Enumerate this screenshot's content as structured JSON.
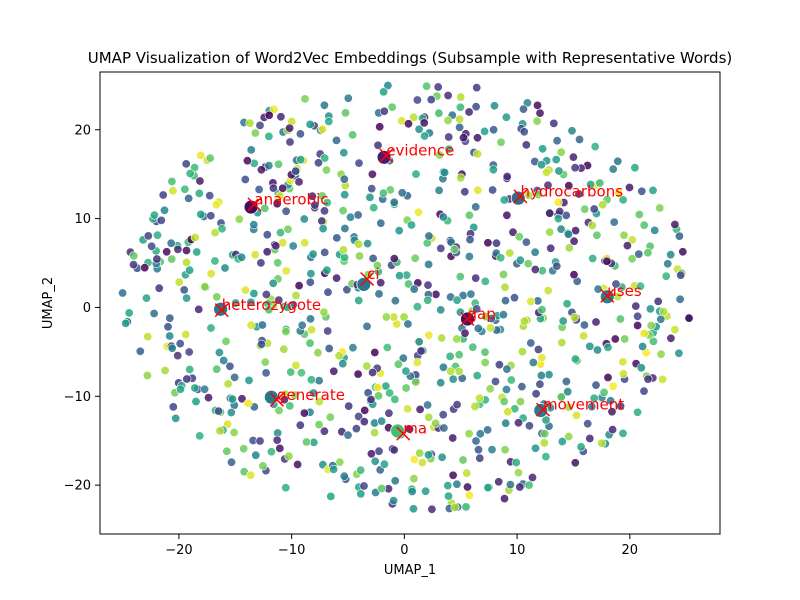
{
  "chart_data": {
    "type": "scatter",
    "title": "UMAP Visualization of Word2Vec Embeddings (Subsample with Representative Words)",
    "xlabel": "UMAP_1",
    "ylabel": "UMAP_2",
    "xlim": [
      -27,
      28
    ],
    "ylim": [
      -25.5,
      26.5
    ],
    "xticks": [
      -20,
      -10,
      0,
      10,
      20
    ],
    "yticks": [
      -20,
      -10,
      0,
      10,
      20
    ],
    "grid": false,
    "legend": "none",
    "colormap": "viridis",
    "marker_edge_color": "#ffffff",
    "annotation_color": "#ff0000",
    "background_points": {
      "count": 900,
      "x_range": [
        -25,
        25.5
      ],
      "y_range": [
        -23,
        25.5
      ],
      "note_shape": "roughly uniform disc"
    },
    "highlighted": [
      {
        "word": "evidence",
        "x": -1.6,
        "y": 17.1
      },
      {
        "word": "anaerobic",
        "x": -13.3,
        "y": 11.6
      },
      {
        "word": "hydrocarbons",
        "x": 10.3,
        "y": 12.5
      },
      {
        "word": "ci",
        "x": -3.3,
        "y": 3.2
      },
      {
        "word": "uses",
        "x": 18.0,
        "y": 1.3
      },
      {
        "word": "heterozygote",
        "x": -16.2,
        "y": -0.3
      },
      {
        "word": "gap",
        "x": 5.6,
        "y": -1.3
      },
      {
        "word": "generate",
        "x": -11.3,
        "y": -10.4
      },
      {
        "word": "movement",
        "x": 12.3,
        "y": -11.5
      },
      {
        "word": "ma",
        "x": -0.1,
        "y": -14.2
      }
    ],
    "highlighted_dots": [
      {
        "x": -1.8,
        "y": 16.9,
        "c": 0.08
      },
      {
        "x": -13.6,
        "y": 11.3,
        "c": 0.03
      },
      {
        "x": 10.1,
        "y": 12.3,
        "c": 0.35
      },
      {
        "x": -3.6,
        "y": 2.6,
        "c": 0.4
      },
      {
        "x": 18.0,
        "y": 1.2,
        "c": 0.45
      },
      {
        "x": -16.3,
        "y": -0.2,
        "c": 0.4
      },
      {
        "x": 5.6,
        "y": -1.3,
        "c": 0.05
      },
      {
        "x": -11.8,
        "y": -10.1,
        "c": 0.4
      },
      {
        "x": 12.1,
        "y": -11.6,
        "c": 0.42
      },
      {
        "x": -0.6,
        "y": -13.9,
        "c": 0.7
      }
    ]
  }
}
